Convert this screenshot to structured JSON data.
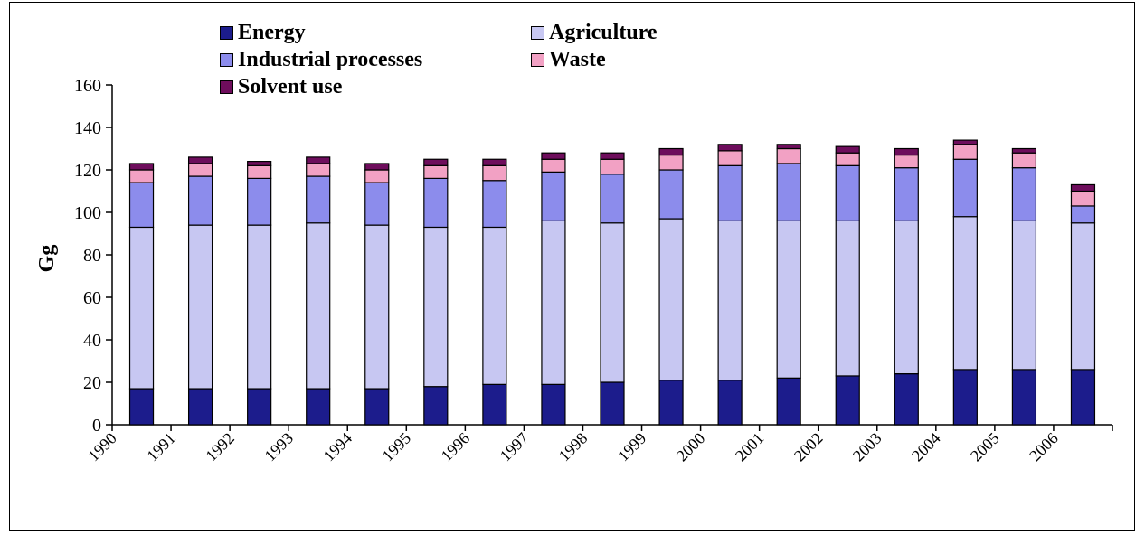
{
  "chart_data": {
    "type": "bar",
    "stacked": true,
    "title": "",
    "xlabel": "",
    "ylabel": "Gg",
    "ylim": [
      0,
      160
    ],
    "yticks": [
      0,
      20,
      40,
      60,
      80,
      100,
      120,
      140,
      160
    ],
    "grid": false,
    "legend_position": "top",
    "categories": [
      "1990",
      "1991",
      "1992",
      "1993",
      "1994",
      "1995",
      "1996",
      "1997",
      "1998",
      "1999",
      "2000",
      "2001",
      "2002",
      "2003",
      "2004",
      "2005",
      "2006"
    ],
    "series": [
      {
        "name": "Energy",
        "color": "#1c1c8c",
        "values": [
          17,
          17,
          17,
          17,
          17,
          18,
          19,
          19,
          20,
          21,
          21,
          22,
          23,
          24,
          26,
          26,
          26
        ]
      },
      {
        "name": "Agriculture",
        "color": "#c7c7f2",
        "values": [
          76,
          77,
          77,
          78,
          77,
          75,
          74,
          77,
          75,
          76,
          75,
          74,
          73,
          72,
          72,
          70,
          69
        ]
      },
      {
        "name": "Industrial processes",
        "color": "#8c8cec",
        "values": [
          21,
          23,
          22,
          22,
          20,
          23,
          22,
          23,
          23,
          23,
          26,
          27,
          26,
          25,
          27,
          25,
          8
        ]
      },
      {
        "name": "Waste",
        "color": "#f2a1c4",
        "values": [
          6,
          6,
          6,
          6,
          6,
          6,
          7,
          6,
          7,
          7,
          7,
          7,
          6,
          6,
          7,
          7,
          7
        ]
      },
      {
        "name": "Solvent use",
        "color": "#6e0d5c",
        "values": [
          3,
          3,
          2,
          3,
          3,
          3,
          3,
          3,
          3,
          3,
          3,
          2,
          3,
          3,
          2,
          2,
          3
        ]
      }
    ]
  }
}
